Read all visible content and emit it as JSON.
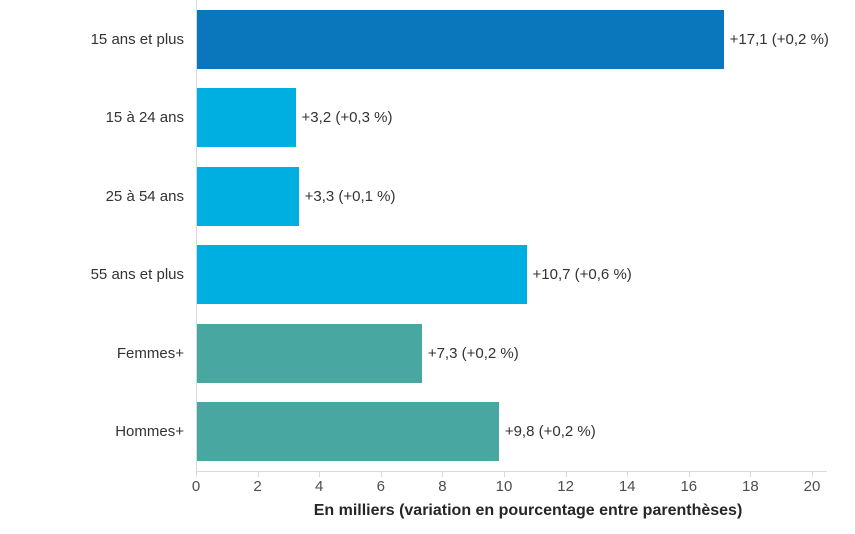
{
  "chart_data": {
    "type": "bar",
    "orientation": "horizontal",
    "categories": [
      "15 ans et plus",
      "15 à 24 ans",
      "25 à 54 ans",
      "55 ans et plus",
      "Femmes+",
      "Hommes+"
    ],
    "values": [
      17.1,
      3.2,
      3.3,
      10.7,
      7.3,
      9.8
    ],
    "value_labels": [
      "+17,1 (+0,2 %)",
      "+3,2 (+0,3 %)",
      "+3,3 (+0,1 %)",
      "+10,7 (+0,6 %)",
      "+7,3 (+0,2 %)",
      "+9,8 (+0,2 %)"
    ],
    "bar_colors": [
      "#0a77bd",
      "#00afe2",
      "#00afe2",
      "#00afe2",
      "#49a7a2",
      "#49a7a2"
    ],
    "title": "",
    "xlabel": "En milliers (variation en pourcentage entre parenthèses)",
    "ylabel": "",
    "xlim": [
      0,
      20
    ],
    "xticks": [
      0,
      2,
      4,
      6,
      8,
      10,
      12,
      14,
      16,
      18,
      20
    ],
    "grid": false,
    "legend": "none",
    "axis_color": "#d9d9d9",
    "text_color": "#333333"
  }
}
